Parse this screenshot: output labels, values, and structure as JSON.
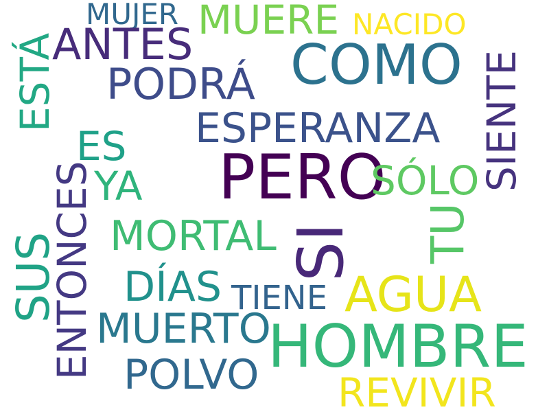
{
  "words": {
    "pero": {
      "text": "PERO",
      "color": "#440154"
    },
    "si": {
      "text": "SI",
      "color": "#482878"
    },
    "hombre": {
      "text": "HOMBRE",
      "color": "#35b779"
    },
    "como": {
      "text": "COMO",
      "color": "#2c728e"
    },
    "agua": {
      "text": "AGUA",
      "color": "#e6e419"
    },
    "revivir": {
      "text": "REVIVIR",
      "color": "#f2e51d"
    },
    "esperanza": {
      "text": "ESPERANZA",
      "color": "#3b528b"
    },
    "muere": {
      "text": "MUERE",
      "color": "#7ad151"
    },
    "antes": {
      "text": "ANTES",
      "color": "#472c7a"
    },
    "podra": {
      "text": "PODRÁ",
      "color": "#3e4c8a"
    },
    "mortal": {
      "text": "MORTAL",
      "color": "#3fbc73"
    },
    "muerto": {
      "text": "MUERTO",
      "color": "#2a788e"
    },
    "polvo": {
      "text": "POLVO",
      "color": "#31688e"
    },
    "dias": {
      "text": "DÍAS",
      "color": "#21918c"
    },
    "es": {
      "text": "ES",
      "color": "#1fa188"
    },
    "ya": {
      "text": "YA",
      "color": "#2fb47c"
    },
    "solo": {
      "text": "SÓLO",
      "color": "#5ec962"
    },
    "mujer": {
      "text": "MUJER",
      "color": "#31688e"
    },
    "nacido": {
      "text": "NACIDO",
      "color": "#fde725"
    },
    "tiene": {
      "text": "TIENE",
      "color": "#33638d"
    },
    "sus": {
      "text": "SUS",
      "color": "#20a386"
    },
    "entonces": {
      "text": "ENTONCES",
      "color": "#443983"
    },
    "siente": {
      "text": "SIENTE",
      "color": "#46337e"
    },
    "tu": {
      "text": "TU",
      "color": "#56c667"
    },
    "esta": {
      "text": "ESTÁ",
      "color": "#22a884"
    }
  }
}
